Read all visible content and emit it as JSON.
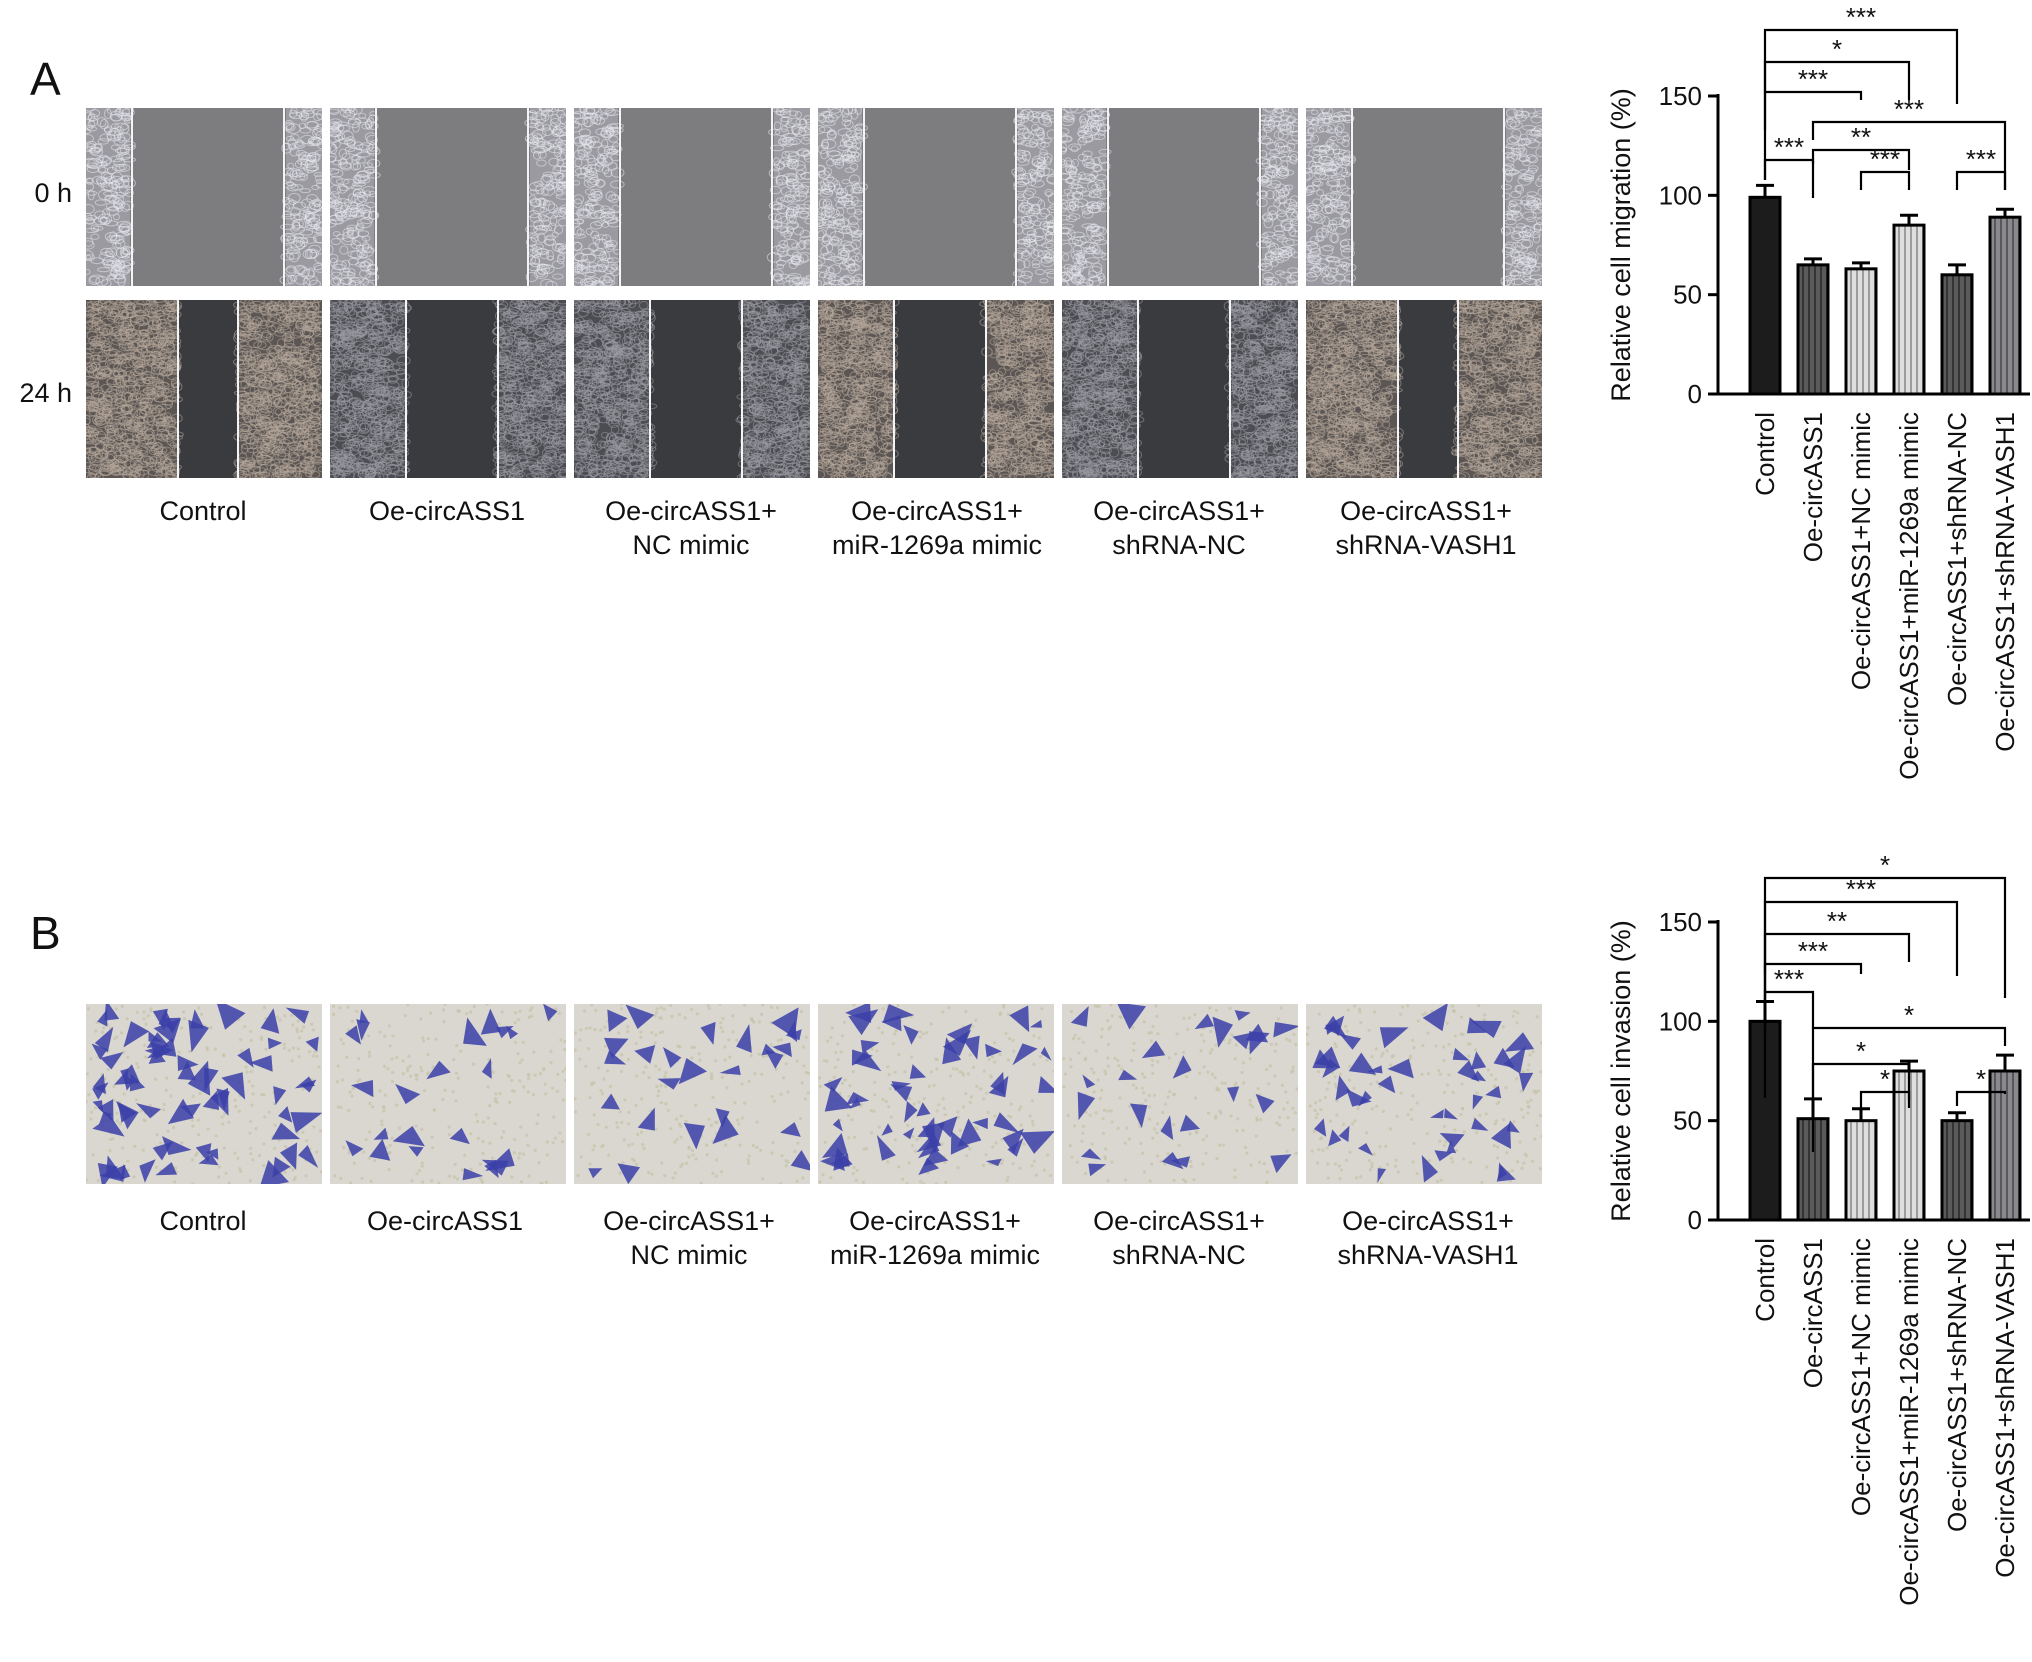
{
  "panels": [
    {
      "letter": "A",
      "row_labels": [
        "0 h",
        "24 h"
      ],
      "conditions": [
        "Control",
        "Oe-circASS1",
        "Oe-circASS1+\nNC mimic",
        "Oe-circASS1+\nmiR-1269a mimic",
        "Oe-circASS1+\nshRNA-NC",
        "Oe-circASS1+\nshRNA-VASH1"
      ]
    },
    {
      "letter": "B",
      "conditions": [
        "Control",
        "Oe-circASS1",
        "Oe-circASS1+\nNC mimic",
        "Oe-circASS1+\nmiR-1269a mimic",
        "Oe-circASS1+\nshRNA-NC",
        "Oe-circASS1+\nshRNA-VASH1"
      ]
    }
  ],
  "chart_data": [
    {
      "type": "bar",
      "ylabel": "Relative cell migration (%)",
      "categories": [
        "Control",
        "Oe-circASS1",
        "Oe-circASS1+NC mimic",
        "Oe-circASS1+miR-1269a mimic",
        "Oe-circASS1+shRNA-NC",
        "Oe-circASS1+shRNA-VASH1"
      ],
      "values": [
        99,
        65,
        63,
        85,
        60,
        89
      ],
      "errors": [
        6,
        3,
        3,
        5,
        5,
        4
      ],
      "ylim": [
        0,
        150
      ],
      "yticks": [
        0,
        50,
        100,
        150
      ],
      "bar_fills": [
        "#1c1c1c",
        "#5a5a5a",
        "#a8a8a8",
        "#d0d0d0",
        "#3c3c3c",
        "#7e7e80"
      ],
      "bar_patterns": [
        "none",
        "vlines-dark",
        "vlines-light",
        "vlines-light",
        "vlines-dark",
        "vlines-gray"
      ],
      "significance": [
        {
          "from": 0,
          "to": 4,
          "label": "***"
        },
        {
          "from": 0,
          "to": 3,
          "label": "*"
        },
        {
          "from": 0,
          "to": 2,
          "label": "***"
        },
        {
          "from": 1,
          "to": 5,
          "label": "***"
        },
        {
          "from": 1,
          "to": 3,
          "label": "**"
        },
        {
          "from": 0,
          "to": 1,
          "label": "***"
        },
        {
          "from": 2,
          "to": 3,
          "label": "***"
        },
        {
          "from": 4,
          "to": 5,
          "label": "***"
        }
      ]
    },
    {
      "type": "bar",
      "ylabel": "Relative cell invasion (%)",
      "categories": [
        "Control",
        "Oe-circASS1",
        "Oe-circASS1+NC mimic",
        "Oe-circASS1+miR-1269a mimic",
        "Oe-circASS1+shRNA-NC",
        "Oe-circASS1+shRNA-VASH1"
      ],
      "values": [
        100,
        51,
        50,
        75,
        50,
        75
      ],
      "errors": [
        10,
        10,
        6,
        5,
        4,
        8
      ],
      "ylim": [
        0,
        150
      ],
      "yticks": [
        0,
        50,
        100,
        150
      ],
      "bar_fills": [
        "#1c1c1c",
        "#5a5a5a",
        "#a8a8a8",
        "#d0d0d0",
        "#3c3c3c",
        "#7e7e80"
      ],
      "bar_patterns": [
        "none",
        "vlines-dark",
        "vlines-light",
        "vlines-light",
        "vlines-dark",
        "vlines-gray"
      ],
      "significance": [
        {
          "from": 0,
          "to": 5,
          "label": "*"
        },
        {
          "from": 0,
          "to": 4,
          "label": "***"
        },
        {
          "from": 0,
          "to": 3,
          "label": "**"
        },
        {
          "from": 0,
          "to": 2,
          "label": "***"
        },
        {
          "from": 0,
          "to": 1,
          "label": "***"
        },
        {
          "from": 1,
          "to": 5,
          "label": "*"
        },
        {
          "from": 1,
          "to": 3,
          "label": "*"
        },
        {
          "from": 2,
          "to": 3,
          "label": "*"
        },
        {
          "from": 4,
          "to": 5,
          "label": "*"
        }
      ]
    }
  ]
}
